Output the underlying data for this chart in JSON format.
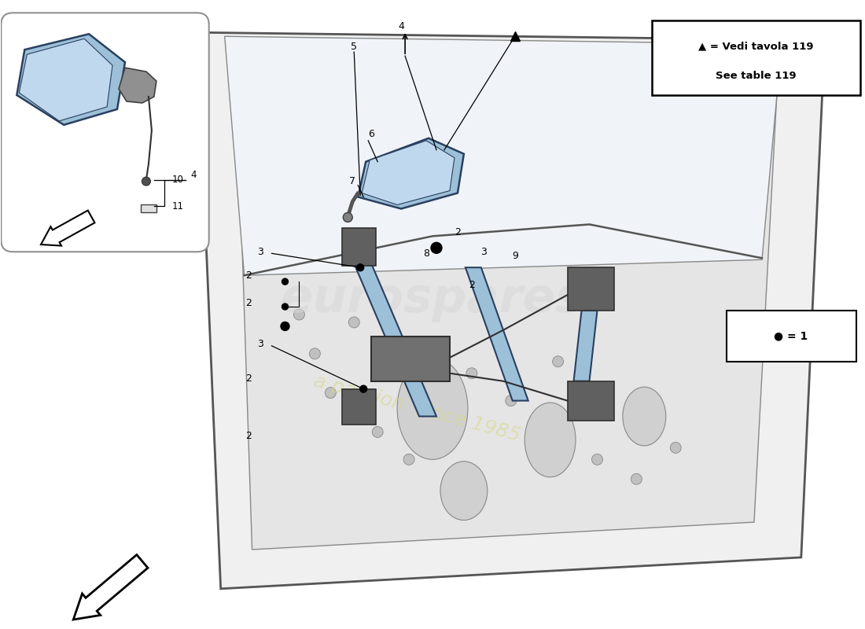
{
  "bg": "#ffffff",
  "door_fill": "#f0f0f0",
  "door_stroke": "#555555",
  "inner_fill": "#e5e5e5",
  "window_fill": "#f5f5f5",
  "blue_fill": "#9cc0d8",
  "blue_stroke": "#2a4060",
  "dark_fill": "#606060",
  "legend_line1": "▲ = Vedi tavola 119",
  "legend_line2": "See table 119",
  "bullet_legend": "● = 1",
  "wm_color": "#cccccc",
  "wm_yellow": "#e0e0a0"
}
